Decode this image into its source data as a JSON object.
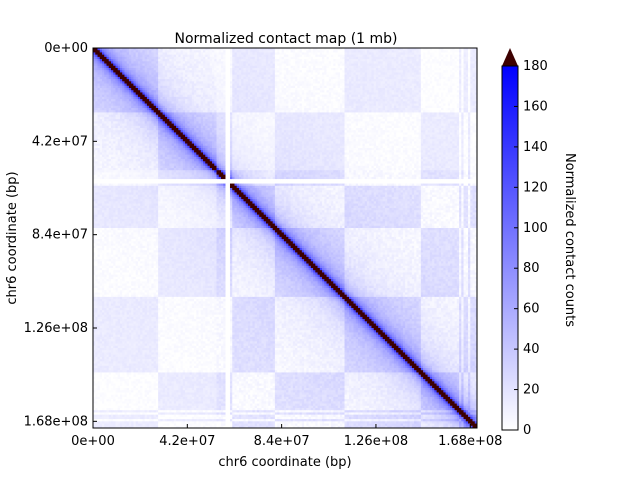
{
  "chart_data": {
    "type": "heatmap",
    "title": "Normalized contact map (1 mb)",
    "xlabel": "chr6 coordinate (bp)",
    "ylabel": "chr6 coordinate (bp)",
    "x_range": [
      0,
      171000000
    ],
    "y_range": [
      0,
      171000000
    ],
    "y_inverted": true,
    "x_ticks": [
      {
        "value": 0,
        "label": "0e+00"
      },
      {
        "value": 42000000,
        "label": "4.2e+07"
      },
      {
        "value": 84000000,
        "label": "8.4e+07"
      },
      {
        "value": 126000000,
        "label": "1.26e+08"
      },
      {
        "value": 168000000,
        "label": "1.68e+08"
      }
    ],
    "y_ticks": [
      {
        "value": 0,
        "label": "0e+00"
      },
      {
        "value": 42000000,
        "label": "4.2e+07"
      },
      {
        "value": 84000000,
        "label": "8.4e+07"
      },
      {
        "value": 126000000,
        "label": "1.26e+08"
      },
      {
        "value": 168000000,
        "label": "1.68e+08"
      }
    ],
    "colorbar": {
      "label": "Normalized contact counts",
      "range": [
        0,
        180
      ],
      "extend": "max",
      "ticks": [
        {
          "value": 0,
          "label": "0"
        },
        {
          "value": 20,
          "label": "20"
        },
        {
          "value": 40,
          "label": "40"
        },
        {
          "value": 60,
          "label": "60"
        },
        {
          "value": 80,
          "label": "80"
        },
        {
          "value": 100,
          "label": "100"
        },
        {
          "value": 120,
          "label": "120"
        },
        {
          "value": 140,
          "label": "140"
        },
        {
          "value": 160,
          "label": "160"
        },
        {
          "value": 180,
          "label": "180"
        }
      ],
      "colors": {
        "low": "#ffffff",
        "high": "#0000ff",
        "over": "#3d0000"
      }
    },
    "resolution_bp": 1000000,
    "num_bins": 171,
    "diagonal_value": "over",
    "blank_bins": [
      59,
      60
    ],
    "grid": false
  }
}
